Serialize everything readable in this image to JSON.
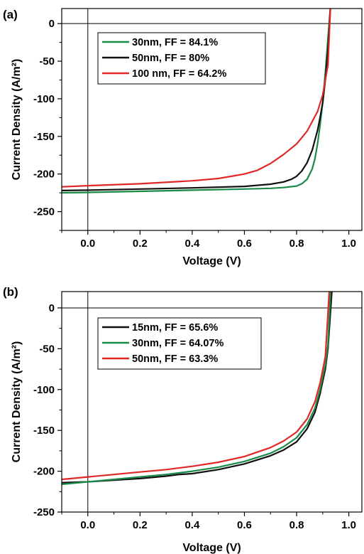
{
  "colors": {
    "green": "#1a8a4a",
    "black": "#111111",
    "red": "#e02828"
  },
  "chart_data": [
    {
      "type": "line",
      "panel_label": "(a)",
      "xlabel": "Voltage (V)",
      "ylabel": "Current Density (A/m²)",
      "xlim": [
        -0.1,
        1.05
      ],
      "ylim": [
        -275,
        20
      ],
      "x_ticks": [
        "0.0",
        "0.2",
        "0.4",
        "0.6",
        "0.8",
        "1.0"
      ],
      "y_ticks": [
        "0",
        "-50",
        "-100",
        "-150",
        "-200",
        "-250"
      ],
      "legend_position": "top-left",
      "series": [
        {
          "name": "30nm, FF = 84.1%",
          "color": "#1a8a4a",
          "x": [
            -0.1,
            0.0,
            0.2,
            0.4,
            0.6,
            0.7,
            0.75,
            0.8,
            0.82,
            0.84,
            0.86,
            0.87,
            0.88,
            0.89,
            0.9,
            0.91,
            0.92,
            0.93
          ],
          "y": [
            -225,
            -224.5,
            -223,
            -221.5,
            -220,
            -219,
            -218,
            -216,
            -213,
            -207,
            -193,
            -180,
            -160,
            -135,
            -105,
            -65,
            -20,
            25
          ]
        },
        {
          "name": "50nm, FF = 80%",
          "color": "#111111",
          "x": [
            -0.1,
            0.0,
            0.2,
            0.4,
            0.6,
            0.7,
            0.75,
            0.78,
            0.8,
            0.82,
            0.84,
            0.86,
            0.88,
            0.89,
            0.9,
            0.91,
            0.92,
            0.93
          ],
          "y": [
            -222,
            -221.5,
            -220,
            -218.5,
            -216.5,
            -213.5,
            -210.5,
            -207,
            -203,
            -196,
            -185,
            -168,
            -142,
            -125,
            -105,
            -75,
            -35,
            25
          ]
        },
        {
          "name": "100 nm, FF = 64.2%",
          "color": "#e02828",
          "x": [
            -0.1,
            0.0,
            0.2,
            0.4,
            0.5,
            0.6,
            0.65,
            0.7,
            0.75,
            0.8,
            0.84,
            0.88,
            0.9,
            0.92,
            0.93
          ],
          "y": [
            -217,
            -215.5,
            -213,
            -209,
            -206,
            -200,
            -195,
            -186,
            -174,
            -160,
            -143,
            -117,
            -95,
            -55,
            25
          ]
        }
      ]
    },
    {
      "type": "line",
      "panel_label": "(b)",
      "xlabel": "Voltage (V)",
      "ylabel": "Current Density (A/m²)",
      "xlim": [
        -0.1,
        1.05
      ],
      "ylim": [
        -250,
        20
      ],
      "x_ticks": [
        "0.0",
        "0.2",
        "0.4",
        "0.6",
        "0.8",
        "1.0"
      ],
      "y_ticks": [
        "0",
        "-50",
        "-100",
        "-150",
        "-200",
        "-250"
      ],
      "legend_position": "top-left",
      "series": [
        {
          "name": "15nm, FF = 65.6%",
          "color": "#111111",
          "x": [
            -0.1,
            0.0,
            0.1,
            0.2,
            0.3,
            0.35,
            0.4,
            0.5,
            0.6,
            0.7,
            0.75,
            0.8,
            0.84,
            0.87,
            0.89,
            0.91,
            0.92,
            0.935
          ],
          "y": [
            -214,
            -213,
            -211,
            -209,
            -206,
            -204,
            -203,
            -198,
            -191,
            -181,
            -174,
            -164,
            -148,
            -128,
            -105,
            -75,
            -50,
            20
          ]
        },
        {
          "name": "30nm, FF = 64.07%",
          "color": "#1a8a4a",
          "x": [
            -0.1,
            0.0,
            0.1,
            0.2,
            0.3,
            0.4,
            0.5,
            0.6,
            0.7,
            0.75,
            0.8,
            0.84,
            0.87,
            0.89,
            0.91,
            0.92,
            0.93
          ],
          "y": [
            -216,
            -213,
            -210,
            -207,
            -204,
            -200,
            -195,
            -188,
            -178,
            -170,
            -159,
            -143,
            -123,
            -100,
            -70,
            -45,
            20
          ]
        },
        {
          "name": "50nm, FF = 63.3%",
          "color": "#e02828",
          "x": [
            -0.1,
            0.0,
            0.1,
            0.2,
            0.3,
            0.4,
            0.5,
            0.6,
            0.7,
            0.75,
            0.8,
            0.84,
            0.87,
            0.89,
            0.91,
            0.925
          ],
          "y": [
            -210,
            -207,
            -204,
            -201,
            -198,
            -194,
            -189,
            -182,
            -171,
            -163,
            -152,
            -136,
            -115,
            -92,
            -60,
            20
          ]
        }
      ]
    }
  ]
}
